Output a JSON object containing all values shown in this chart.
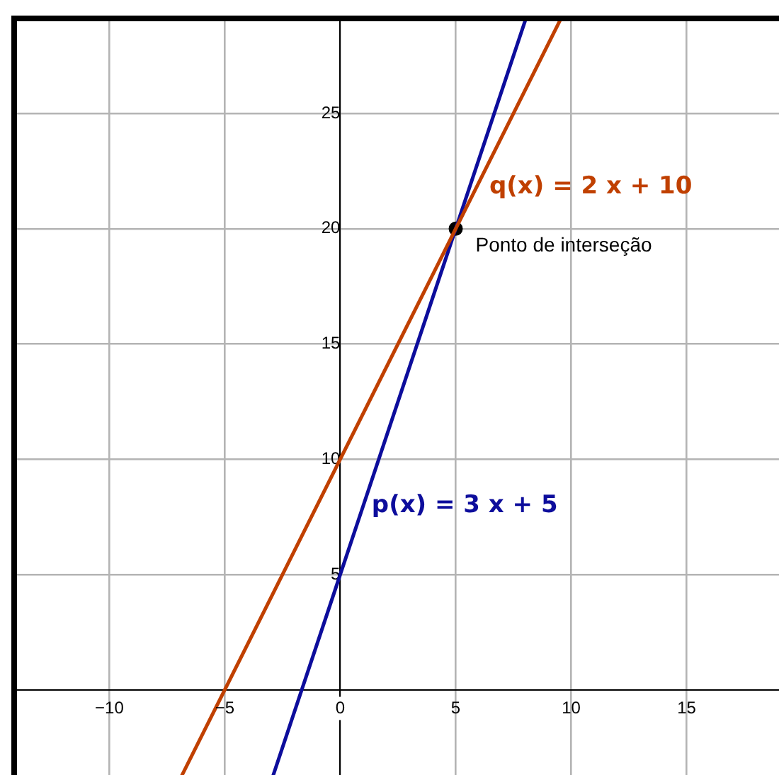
{
  "chart_data": {
    "type": "line",
    "xlim": [
      -14,
      19
    ],
    "ylim": [
      -3.7,
      29
    ],
    "xticks": [
      {
        "value": -10,
        "label": "−10"
      },
      {
        "value": -5,
        "label": "−5"
      },
      0,
      5,
      10,
      15
    ],
    "yticks": [
      5,
      10,
      15,
      20,
      25
    ],
    "grid": true,
    "marker": "none",
    "series": [
      {
        "name": "q(x) = 2 x + 10",
        "color": "#c04000",
        "x": [
          -6.85,
          -5,
          0,
          5,
          9.5
        ],
        "values": [
          -3.7,
          0,
          10,
          20,
          29
        ]
      },
      {
        "name": "p(x) = 3 x + 5",
        "color": "#0d0d9c",
        "x": [
          -2.9,
          0,
          5,
          8
        ],
        "values": [
          -3.7,
          5,
          20,
          29
        ]
      },
      {
        "type": "scatter",
        "color": "#000000",
        "marker": "circle",
        "x": [
          5
        ],
        "values": [
          20
        ]
      }
    ],
    "annotations": [
      {
        "text": "Ponto de interseção",
        "x": 5,
        "y": 20
      }
    ]
  }
}
